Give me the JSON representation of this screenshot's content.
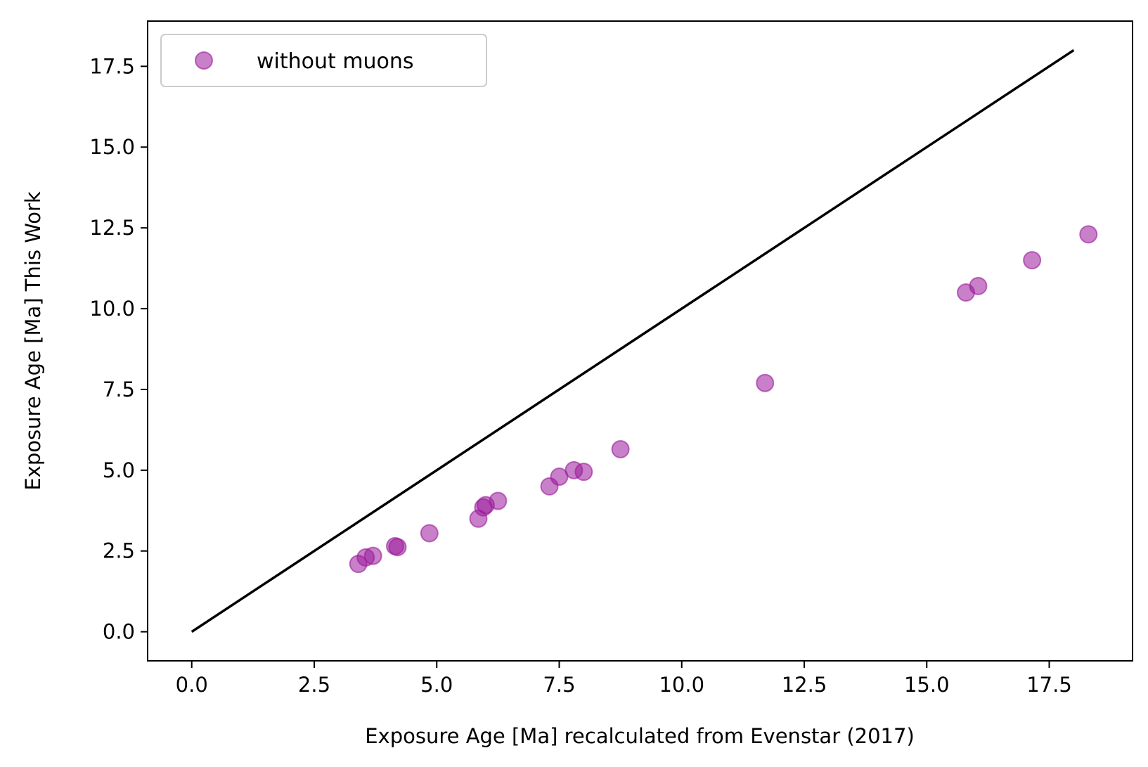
{
  "chart_data": {
    "type": "scatter",
    "xlabel": "Exposure Age [Ma] recalculated from Evenstar (2017)",
    "ylabel": "Exposure Age [Ma] This Work",
    "xlim": [
      -0.9,
      19.2
    ],
    "ylim": [
      -0.9,
      18.9
    ],
    "xticks": [
      "0.0",
      "2.5",
      "5.0",
      "7.5",
      "10.0",
      "12.5",
      "15.0",
      "17.5"
    ],
    "yticks": [
      "0.0",
      "2.5",
      "5.0",
      "7.5",
      "10.0",
      "12.5",
      "15.0",
      "17.5"
    ],
    "xtick_values": [
      0,
      2.5,
      5,
      7.5,
      10,
      12.5,
      15,
      17.5
    ],
    "ytick_values": [
      0,
      2.5,
      5,
      7.5,
      10,
      12.5,
      15,
      17.5
    ],
    "legend": {
      "location": "upper-left",
      "entries": [
        "without muons"
      ]
    },
    "grid": false,
    "series": [
      {
        "name": "without muons",
        "type": "scatter",
        "color": "#9a1a9a",
        "x": [
          3.4,
          3.55,
          3.7,
          4.15,
          4.2,
          4.85,
          5.85,
          5.95,
          6.0,
          6.25,
          7.3,
          7.5,
          7.8,
          8.0,
          8.75,
          11.7,
          15.8,
          16.05,
          17.15,
          18.3
        ],
        "y": [
          2.1,
          2.3,
          2.35,
          2.65,
          2.62,
          3.05,
          3.5,
          3.85,
          3.92,
          4.05,
          4.5,
          4.8,
          5.0,
          4.95,
          5.65,
          7.7,
          10.5,
          10.7,
          11.5,
          12.3
        ]
      },
      {
        "type": "line",
        "color": "#000000",
        "x": [
          0,
          18
        ],
        "y": [
          0,
          18
        ]
      }
    ]
  }
}
